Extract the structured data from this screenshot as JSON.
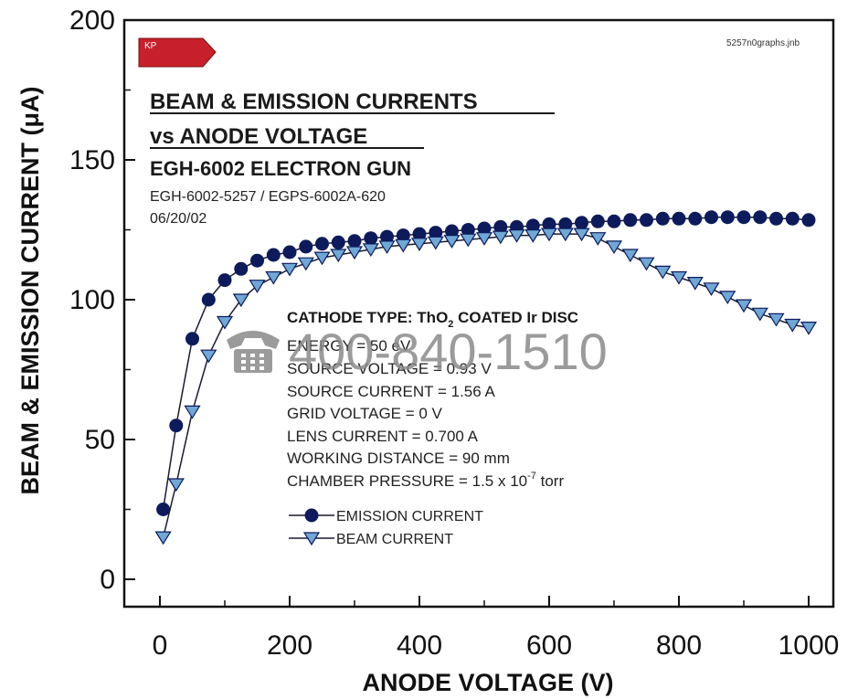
{
  "file_label": "5257n0graphs.jnb",
  "logo": {
    "text": "KP",
    "color": "#c8202a"
  },
  "title_line1": "BEAM & EMISSION CURRENTS",
  "title_line2": "vs ANODE VOLTAGE",
  "subtitle": "EGH-6002 ELECTRON GUN",
  "model_line": "EGH-6002-5257 / EGPS-6002A-620",
  "date_line": "06/20/02",
  "params": {
    "cathode_prefix": "CATHODE TYPE:  ThO",
    "cathode_sub": "2",
    "cathode_suffix": " COATED Ir DISC",
    "energy": "ENERGY = 50 eV",
    "source_voltage": "SOURCE VOLTAGE = 0.93 V",
    "source_current": "SOURCE CURRENT = 1.56 A",
    "grid_voltage": "GRID VOLTAGE = 0 V",
    "lens_current": "LENS CURRENT = 0.700 A",
    "working_distance": "WORKING DISTANCE = 90 mm",
    "pressure_prefix": "CHAMBER PRESSURE = 1.5 x 10",
    "pressure_exp": "-7",
    "pressure_suffix": " torr"
  },
  "watermark": {
    "icon": "telephone-icon",
    "text": "400-840-1510"
  },
  "colors": {
    "emission": "#0d1a5c",
    "beam_fill": "#6fa8d6",
    "beam_stroke": "#0d1a5c",
    "line": "#1a1a2e"
  },
  "chart_data": {
    "type": "line",
    "xlabel": "ANODE VOLTAGE (V)",
    "ylabel": "BEAM & EMISSION CURRENT (μA)",
    "xlim": [
      0,
      1000
    ],
    "ylim": [
      0,
      200
    ],
    "xticks": [
      "0",
      "200",
      "400",
      "600",
      "800",
      "1000"
    ],
    "yticks": [
      "0",
      "50",
      "100",
      "150",
      "200"
    ],
    "x": [
      5,
      25,
      50,
      75,
      100,
      125,
      150,
      175,
      200,
      225,
      250,
      275,
      300,
      325,
      350,
      375,
      400,
      425,
      450,
      475,
      500,
      525,
      550,
      575,
      600,
      625,
      650,
      675,
      700,
      725,
      750,
      775,
      800,
      825,
      850,
      875,
      900,
      925,
      950,
      975,
      1000
    ],
    "series": [
      {
        "name": "EMISSION CURRENT",
        "marker": "circle",
        "values": [
          25,
          55,
          86,
          100,
          107,
          111,
          114,
          116,
          117,
          119,
          120,
          120.5,
          121,
          122,
          122.5,
          123,
          123.5,
          124,
          124.5,
          125,
          125.5,
          126,
          126,
          126.5,
          127,
          127,
          127.5,
          128,
          128,
          128.5,
          128.5,
          129,
          129,
          129,
          129.5,
          129.5,
          129.5,
          129.5,
          129,
          129,
          128.5
        ]
      },
      {
        "name": "BEAM CURRENT",
        "marker": "triangle-down",
        "values": [
          15,
          34,
          60,
          80,
          92,
          100,
          105,
          108,
          111,
          113,
          115,
          116,
          117,
          118,
          119,
          119.5,
          120,
          120.5,
          121,
          121.5,
          122,
          122.5,
          123,
          123,
          123.5,
          123.5,
          123.5,
          122,
          119,
          116,
          113,
          110,
          108,
          106,
          104,
          101,
          98,
          95,
          93,
          91,
          90
        ]
      }
    ]
  }
}
